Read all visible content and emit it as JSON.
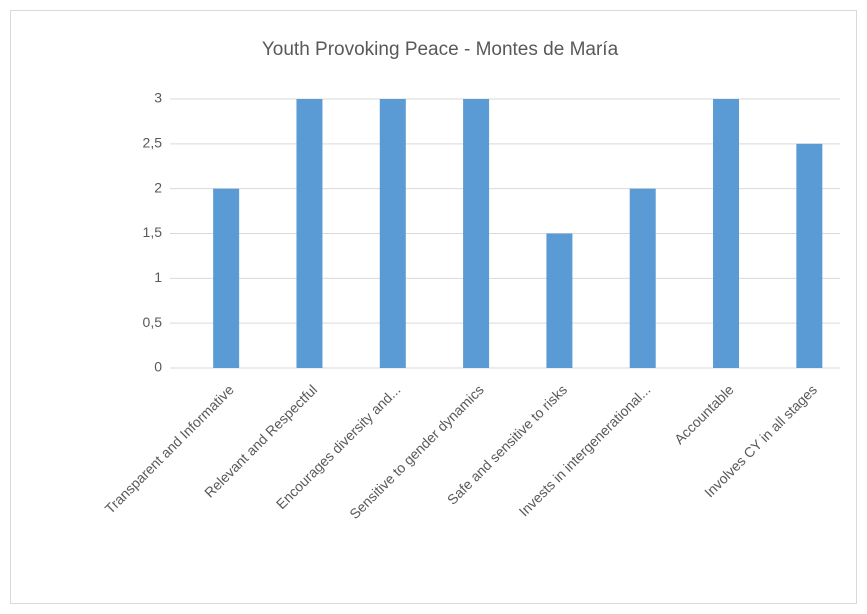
{
  "chart_data": {
    "type": "bar",
    "title": "Youth Provoking Peace - Montes de María",
    "categories": [
      "Transparent and Informative",
      "Relevant and Respectful",
      "Encourages diversity and...",
      "Sensitive to gender dynamics",
      "Safe and sensitive to risks",
      "Invests in intergenerational...",
      "Accountable",
      "Involves CY in all stages"
    ],
    "values": [
      2,
      3,
      3,
      3,
      1.5,
      2,
      3,
      2.5
    ],
    "color": "#5b9bd5",
    "ylim": [
      0,
      3
    ],
    "yticks": [
      0,
      {
        "value": 0.5,
        "label": "0,5"
      },
      1,
      {
        "value": 1.5,
        "label": "1,5"
      },
      2,
      {
        "value": 2.5,
        "label": "2,5"
      },
      3
    ],
    "grid": true
  }
}
